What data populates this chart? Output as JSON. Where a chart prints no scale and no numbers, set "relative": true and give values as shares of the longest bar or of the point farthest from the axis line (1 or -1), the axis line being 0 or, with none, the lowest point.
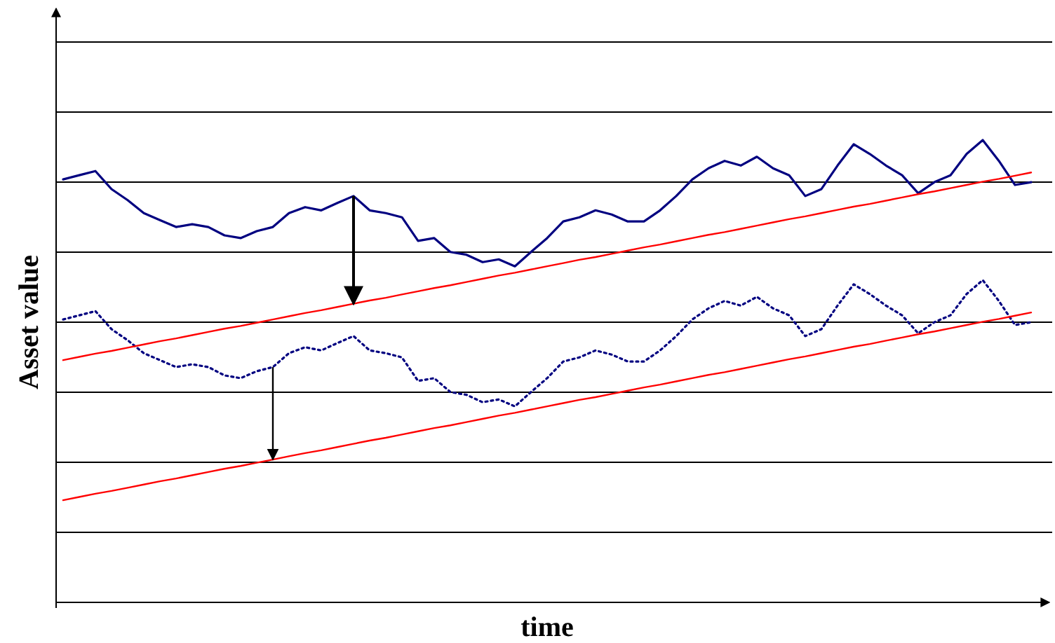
{
  "chart_data": {
    "type": "line",
    "xlabel": "time",
    "ylabel": "Asset value",
    "relative": true,
    "grid": true,
    "marker": "none",
    "tick_labels": false,
    "categories": [
      null,
      null,
      null,
      null,
      null,
      null,
      null,
      null,
      null,
      null,
      null,
      null,
      null,
      null,
      null,
      null,
      null,
      null,
      null,
      null,
      null,
      null,
      null,
      null,
      null,
      null,
      null,
      null,
      null,
      null,
      null,
      null,
      null,
      null,
      null,
      null,
      null,
      null,
      null,
      null,
      null,
      null,
      null,
      null,
      null,
      null,
      null,
      null,
      null,
      null,
      null,
      null,
      null,
      null,
      null,
      null,
      null,
      null,
      null,
      null,
      null
    ],
    "series": [
      {
        "color": "#000080",
        "line_style": "solid",
        "values": [
          0.915,
          0.924,
          0.933,
          0.894,
          0.87,
          0.842,
          0.827,
          0.812,
          0.818,
          0.812,
          0.794,
          0.788,
          0.803,
          0.812,
          0.842,
          0.855,
          0.848,
          0.864,
          0.879,
          0.848,
          0.842,
          0.833,
          0.782,
          0.788,
          0.758,
          0.752,
          0.736,
          0.742,
          0.727,
          0.758,
          0.788,
          0.824,
          0.833,
          0.848,
          0.839,
          0.824,
          0.824,
          0.848,
          0.879,
          0.915,
          0.939,
          0.955,
          0.945,
          0.964,
          0.939,
          0.924,
          0.879,
          0.894,
          0.945,
          0.991,
          0.97,
          0.945,
          0.924,
          0.885,
          0.909,
          0.924,
          0.97,
          1.0,
          0.955,
          0.903,
          0.909
        ]
      },
      {
        "color": "#000080",
        "line_style": "dotted",
        "values": [
          0.612,
          0.621,
          0.63,
          0.591,
          0.567,
          0.539,
          0.524,
          0.509,
          0.515,
          0.509,
          0.491,
          0.485,
          0.5,
          0.509,
          0.539,
          0.552,
          0.545,
          0.561,
          0.576,
          0.545,
          0.539,
          0.53,
          0.479,
          0.485,
          0.455,
          0.449,
          0.433,
          0.439,
          0.424,
          0.455,
          0.485,
          0.521,
          0.53,
          0.545,
          0.536,
          0.521,
          0.521,
          0.545,
          0.576,
          0.612,
          0.636,
          0.652,
          0.642,
          0.661,
          0.636,
          0.621,
          0.576,
          0.591,
          0.642,
          0.688,
          0.667,
          0.642,
          0.621,
          0.582,
          0.606,
          0.621,
          0.667,
          0.697,
          0.652,
          0.6,
          0.606
        ]
      },
      {
        "color": "#ff0000",
        "line_style": "solid",
        "values": [
          0.524,
          0.531,
          0.538,
          0.544,
          0.551,
          0.558,
          0.565,
          0.571,
          0.578,
          0.585,
          0.592,
          0.598,
          0.605,
          0.612,
          0.619,
          0.626,
          0.632,
          0.639,
          0.646,
          0.653,
          0.659,
          0.666,
          0.673,
          0.68,
          0.686,
          0.693,
          0.7,
          0.707,
          0.713,
          0.72,
          0.727,
          0.734,
          0.741,
          0.747,
          0.754,
          0.761,
          0.768,
          0.774,
          0.781,
          0.788,
          0.795,
          0.801,
          0.808,
          0.815,
          0.822,
          0.829,
          0.835,
          0.842,
          0.849,
          0.856,
          0.862,
          0.869,
          0.876,
          0.883,
          0.889,
          0.896,
          0.903,
          0.91,
          0.916,
          0.923,
          0.93
        ]
      },
      {
        "color": "#ff0000",
        "line_style": "solid",
        "values": [
          0.221,
          0.228,
          0.235,
          0.241,
          0.248,
          0.255,
          0.262,
          0.268,
          0.275,
          0.282,
          0.289,
          0.295,
          0.302,
          0.309,
          0.316,
          0.323,
          0.329,
          0.336,
          0.343,
          0.35,
          0.356,
          0.363,
          0.37,
          0.377,
          0.383,
          0.39,
          0.397,
          0.404,
          0.41,
          0.417,
          0.424,
          0.431,
          0.438,
          0.444,
          0.451,
          0.458,
          0.465,
          0.471,
          0.478,
          0.485,
          0.492,
          0.498,
          0.505,
          0.512,
          0.519,
          0.526,
          0.532,
          0.539,
          0.546,
          0.553,
          0.559,
          0.566,
          0.573,
          0.58,
          0.586,
          0.593,
          0.6,
          0.607,
          0.613,
          0.62,
          0.627
        ]
      }
    ]
  }
}
